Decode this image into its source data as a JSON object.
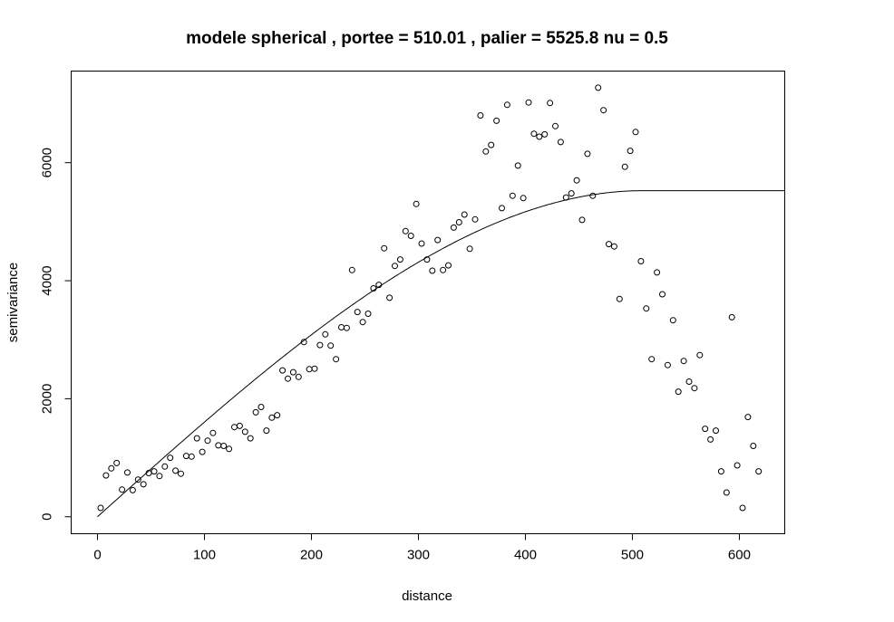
{
  "chart_data": {
    "type": "scatter",
    "title": "modele  spherical , portee = 510.01 , palier = 5525.8 nu =  0.5",
    "xlabel": "distance",
    "ylabel": "semivariance",
    "xlim": [
      -25,
      642
    ],
    "ylim": [
      -280,
      7560
    ],
    "xticks": [
      0,
      100,
      200,
      300,
      400,
      500,
      600
    ],
    "yticks": [
      0,
      2000,
      4000,
      6000
    ],
    "xtick_labels": [
      "0",
      "100",
      "200",
      "300",
      "400",
      "500",
      "600"
    ],
    "ytick_labels": [
      "0",
      "2000",
      "4000",
      "6000"
    ],
    "grid": false,
    "legend": "none",
    "series": [
      {
        "kind": "points",
        "x": [
          3,
          8,
          13,
          18,
          23,
          28,
          33,
          38,
          43,
          48,
          53,
          58,
          63,
          68,
          73,
          78,
          83,
          88,
          93,
          98,
          103,
          108,
          113,
          118,
          123,
          128,
          133,
          138,
          143,
          148,
          153,
          158,
          163,
          168,
          173,
          178,
          183,
          188,
          193,
          198,
          203,
          208,
          213,
          218,
          223,
          228,
          233,
          238,
          243,
          248,
          253,
          258,
          263,
          268,
          273,
          278,
          283,
          288,
          293,
          298,
          303,
          308,
          313,
          318,
          323,
          328,
          333,
          338,
          343,
          348,
          353,
          358,
          363,
          368,
          373,
          378,
          383,
          388,
          393,
          398,
          403,
          408,
          413,
          418,
          423,
          428,
          433,
          438,
          443,
          448,
          453,
          458,
          463,
          468,
          473,
          478,
          483,
          488,
          493,
          498,
          503,
          508,
          513,
          518,
          523,
          528,
          533,
          538,
          543,
          548,
          553,
          558,
          563,
          568,
          573,
          578,
          583,
          588,
          593,
          598,
          603,
          608,
          613,
          618
        ],
        "y": [
          150,
          700,
          820,
          910,
          460,
          750,
          450,
          630,
          550,
          740,
          770,
          690,
          850,
          1000,
          780,
          730,
          1030,
          1020,
          1330,
          1100,
          1290,
          1420,
          1210,
          1200,
          1150,
          1520,
          1540,
          1440,
          1330,
          1770,
          1860,
          1460,
          1680,
          1720,
          2480,
          2340,
          2450,
          2370,
          2960,
          2500,
          2510,
          2910,
          3090,
          2900,
          2670,
          3210,
          3200,
          4180,
          3470,
          3300,
          3440,
          3870,
          3930,
          4550,
          3710,
          4250,
          4360,
          4840,
          4760,
          5300,
          4630,
          4360,
          4170,
          4690,
          4180,
          4260,
          4900,
          4990,
          5120,
          4540,
          5040,
          6800,
          6190,
          6300,
          6710,
          5230,
          6980,
          5440,
          5950,
          5400,
          7020,
          6490,
          6440,
          6480,
          7010,
          6620,
          6350,
          5410,
          5480,
          5700,
          5030,
          6150,
          5440,
          7270,
          6890,
          4620,
          4580,
          3690,
          5930,
          6200,
          6520,
          4330,
          3530,
          2670,
          4140,
          3770,
          2570,
          3330,
          2120,
          2640,
          2290,
          2180,
          2740,
          1490,
          1310,
          1460,
          770,
          410,
          3380,
          870,
          150,
          1690,
          1200,
          770
        ]
      },
      {
        "kind": "model",
        "model": "spherical",
        "range": 510.01,
        "sill": 5525.8,
        "nugget": 0.5,
        "x_range": [
          0,
          642
        ]
      }
    ]
  }
}
